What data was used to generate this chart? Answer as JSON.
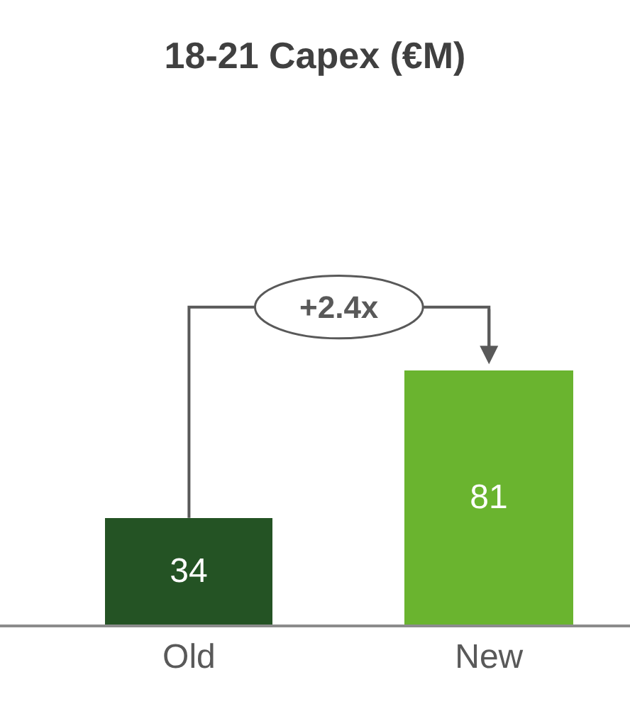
{
  "chart_data": {
    "type": "bar",
    "title": "18-21 Capex (€M)",
    "categories": [
      "Old",
      "New"
    ],
    "values": [
      34,
      81
    ],
    "colors": [
      "#245324",
      "#6ab42f"
    ],
    "data_labels": true,
    "annotations": [
      "+2.4x"
    ]
  }
}
